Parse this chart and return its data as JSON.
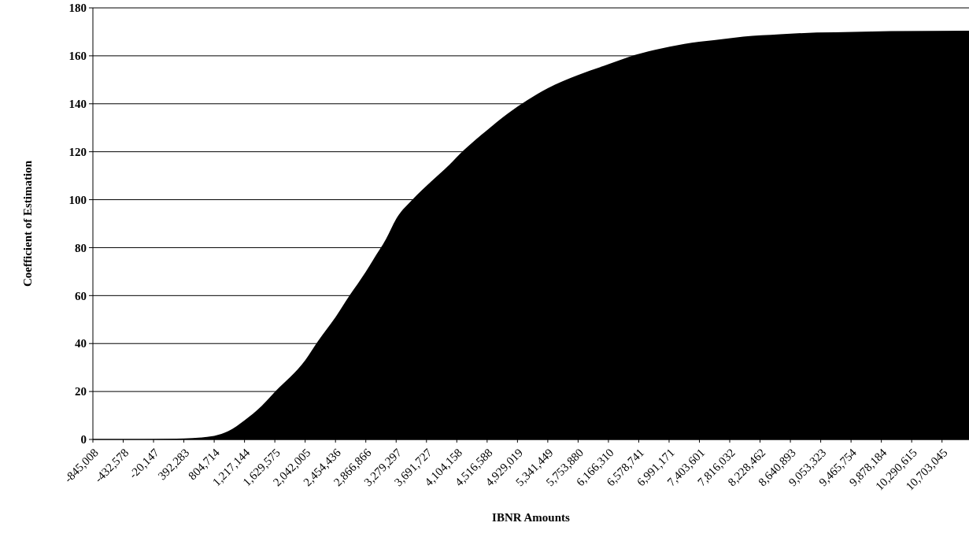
{
  "chart_data": {
    "type": "area",
    "xlabel": "IBNR Amounts",
    "ylabel": "Coefficient of Estimation",
    "x": [
      -845008,
      -432578,
      -20147,
      392283,
      804714,
      1000000,
      1217144,
      1450000,
      1636000,
      2042005,
      2216000,
      2454436,
      2645000,
      2866866,
      2968000,
      3140000,
      3279297,
      3500000,
      3752000,
      4000000,
      4213000,
      4516588,
      4800000,
      5062000,
      5341449,
      5753880,
      6166310,
      6437000,
      6800000,
      7200000,
      7600000,
      8000000,
      8500000,
      9000000,
      9500000,
      10000000,
      11070000
    ],
    "values": [
      0,
      0,
      0.1,
      0.4,
      1.5,
      3.5,
      8,
      14,
      20,
      33,
      41,
      51,
      60,
      70,
      75,
      83.5,
      92,
      100,
      107.5,
      114.5,
      121,
      129,
      136,
      141.5,
      146.5,
      152,
      156.5,
      159.5,
      162.5,
      165,
      166.5,
      168,
      169,
      169.7,
      170,
      170.3,
      170.5
    ],
    "color": "#000000",
    "xlim": [
      -845008,
      11070000
    ],
    "xticks": [
      {
        "value": -845008,
        "label": "-845,008"
      },
      {
        "value": -432578,
        "label": "-432,578"
      },
      {
        "value": -20147,
        "label": "-20,147"
      },
      {
        "value": 392283,
        "label": "392,283"
      },
      {
        "value": 804714,
        "label": "804,714"
      },
      {
        "value": 1217144,
        "label": "1,217,144"
      },
      {
        "value": 1629575,
        "label": "1,629,575"
      },
      {
        "value": 2042005,
        "label": "2,042,005"
      },
      {
        "value": 2454436,
        "label": "2,454,436"
      },
      {
        "value": 2866866,
        "label": "2,866,866"
      },
      {
        "value": 3279297,
        "label": "3,279,297"
      },
      {
        "value": 3691727,
        "label": "3,691,727"
      },
      {
        "value": 4104158,
        "label": "4,104,158"
      },
      {
        "value": 4516588,
        "label": "4,516,588"
      },
      {
        "value": 4929019,
        "label": "4,929,019"
      },
      {
        "value": 5341449,
        "label": "5,341,449"
      },
      {
        "value": 5753880,
        "label": "5,753,880"
      },
      {
        "value": 6166310,
        "label": "6,166,310"
      },
      {
        "value": 6578741,
        "label": "6,578,741"
      },
      {
        "value": 6991171,
        "label": "6,991,171"
      },
      {
        "value": 7403601,
        "label": "7,403,601"
      },
      {
        "value": 7816032,
        "label": "7,816,032"
      },
      {
        "value": 8228462,
        "label": "8,228,462"
      },
      {
        "value": 8640893,
        "label": "8,640,893"
      },
      {
        "value": 9053323,
        "label": "9,053,323"
      },
      {
        "value": 9465754,
        "label": "9,465,754"
      },
      {
        "value": 9878184,
        "label": "9,878,184"
      },
      {
        "value": 10290615,
        "label": "10,290,615"
      },
      {
        "value": 10703045,
        "label": "10,703,045"
      }
    ],
    "ylim": [
      0,
      180
    ],
    "yticks": [
      0,
      20,
      40,
      60,
      80,
      100,
      120,
      140,
      160,
      180
    ],
    "grid": "y"
  }
}
